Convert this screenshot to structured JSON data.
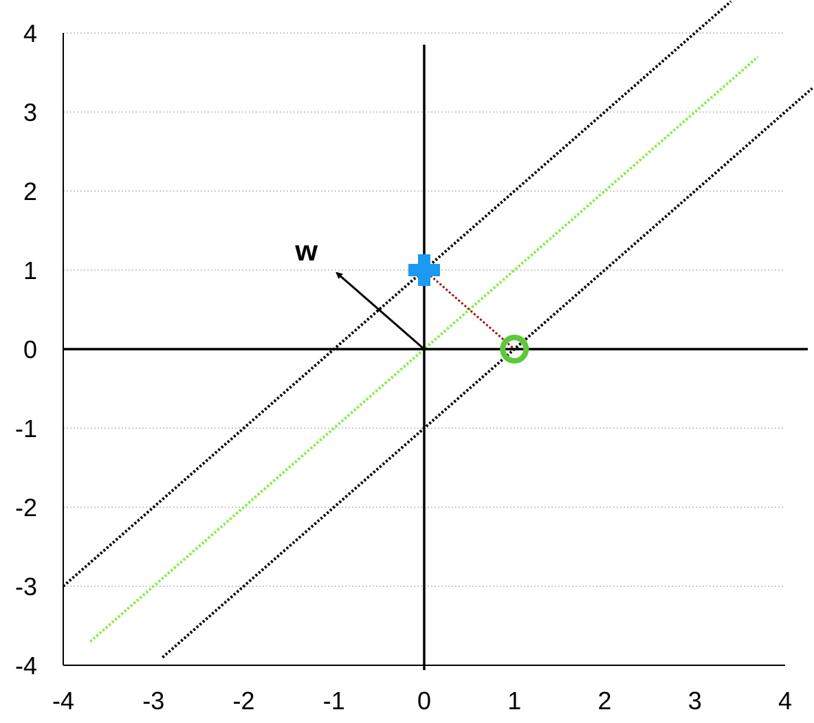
{
  "chart_data": {
    "type": "scatter",
    "title": "",
    "xlabel": "",
    "ylabel": "",
    "xlim": [
      -4,
      4
    ],
    "ylim": [
      -4,
      4
    ],
    "x_ticks": [
      "-4",
      "-3",
      "-2",
      "-1",
      "0",
      "1",
      "2",
      "3",
      "4"
    ],
    "y_ticks": [
      "-4",
      "-3",
      "-2",
      "-1",
      "0",
      "1",
      "2",
      "3",
      "4"
    ],
    "grid": "horizontal dotted",
    "points": [
      {
        "marker": "plus",
        "x": 0,
        "y": 1,
        "color": "#1a9af0"
      },
      {
        "marker": "circle",
        "x": 1,
        "y": 0,
        "color": "#5cc93a"
      }
    ],
    "lines": [
      {
        "role": "decision-boundary",
        "style": "dotted",
        "color": "#7ef040",
        "from": [
          -3.7,
          -3.7
        ],
        "to": [
          3.7,
          3.7
        ]
      },
      {
        "role": "margin-upper",
        "style": "dotted",
        "color": "#000000",
        "from": [
          -4,
          -3
        ],
        "to": [
          3.4,
          4.4
        ]
      },
      {
        "role": "margin-lower",
        "style": "dotted",
        "color": "#000000",
        "from": [
          -2.9,
          -3.9
        ],
        "to": [
          4.3,
          3.3
        ]
      },
      {
        "role": "margin-connector",
        "style": "dotted",
        "color": "#a01010",
        "from": [
          0,
          1
        ],
        "to": [
          1,
          0
        ]
      }
    ],
    "vector": {
      "label": "w",
      "from": [
        0,
        0
      ],
      "to": [
        -1,
        1
      ],
      "color": "#000000"
    }
  }
}
